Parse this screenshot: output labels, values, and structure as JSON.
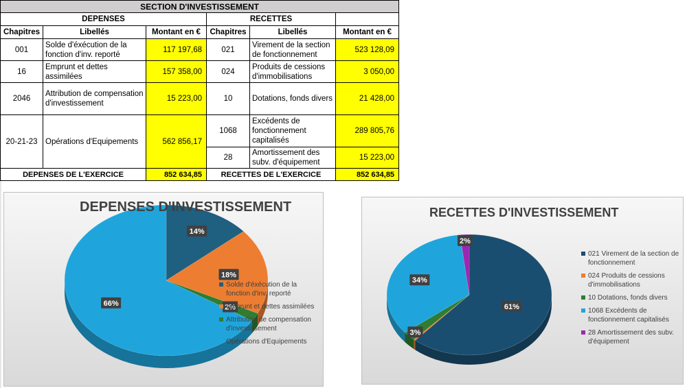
{
  "table": {
    "section_title": "SECTION D'INVESTISSEMENT",
    "depenses_header": "DEPENSES",
    "recettes_header": "RECETTES",
    "col_chapitres": "Chapitres",
    "col_libelles": "Libellés",
    "col_montant": "Montant en €",
    "depenses_rows": [
      {
        "chapitre": "001",
        "libelle": "Solde d'éxécution de la fonction d'inv. reporté",
        "montant": "117 197,68"
      },
      {
        "chapitre": "16",
        "libelle": "Emprunt et dettes assimilées",
        "montant": "157 358,00"
      },
      {
        "chapitre": "2046",
        "libelle": "Attribution de compensation d'investissement",
        "montant": "15 223,00"
      },
      {
        "chapitre": "20-21-23",
        "libelle": "Opérations d'Equipements",
        "montant": "562 856,17"
      }
    ],
    "recettes_rows": [
      {
        "chapitre": "021",
        "libelle": "Virement de la section de fonctionnement",
        "montant": "523 128,09"
      },
      {
        "chapitre": "024",
        "libelle": "Produits de cessions d'immobilisations",
        "montant": "3 050,00"
      },
      {
        "chapitre": "10",
        "libelle": "Dotations, fonds divers",
        "montant": "21 428,00"
      },
      {
        "chapitre": "1068",
        "libelle": "Excédents de fonctionnement capitalisés",
        "montant": "289 805,76"
      },
      {
        "chapitre": "28",
        "libelle": "Amortissement des subv. d'équipement",
        "montant": "15 223,00"
      }
    ],
    "total_depenses_label": "DEPENSES DE L'EXERCICE",
    "total_depenses": "852 634,85",
    "total_recettes_label": "RECETTES DE L'EXERCICE",
    "total_recettes": "852 634,85"
  },
  "chart_data": [
    {
      "type": "pie",
      "title": "DEPENSES D'INVESTISSEMENT",
      "legend_position": "right",
      "slices": [
        {
          "label": "Solde d'éxécution de la fonction d'inv. reporté",
          "value": 117197.68,
          "pct_label": "14%",
          "color": "#1f5f7f"
        },
        {
          "label": "Emprunt et dettes assimilées",
          "value": 157358.0,
          "pct_label": "18%",
          "color": "#ed7d31"
        },
        {
          "label": "Attribution de compensation d'investissement",
          "value": 15223.0,
          "pct_label": "2%",
          "color": "#2e7d32"
        },
        {
          "label": "Opérations d'Equipements",
          "value": 562856.17,
          "pct_label": "66%",
          "color": "#1fa5dc"
        }
      ]
    },
    {
      "type": "pie",
      "title": "RECETTES D'INVESTISSEMENT",
      "legend_position": "right",
      "slices": [
        {
          "label": "021 Virement de la section de fonctionnement",
          "value": 523128.09,
          "pct_label": "61%",
          "color": "#1a4e70"
        },
        {
          "label": "024 Produits de cessions d'immobilisations",
          "value": 3050.0,
          "pct_label": "",
          "color": "#ed7d31"
        },
        {
          "label": "10 Dotations, fonds divers",
          "value": 21428.0,
          "pct_label": "3%",
          "color": "#2e7d32"
        },
        {
          "label": "1068 Excédents de fonctionnement capitalisés",
          "value": 289805.76,
          "pct_label": "34%",
          "color": "#1fa5dc"
        },
        {
          "label": "28 Amortissement des subv. d'équipement",
          "value": 15223.0,
          "pct_label": "2%",
          "color": "#9c27b0"
        }
      ]
    }
  ]
}
